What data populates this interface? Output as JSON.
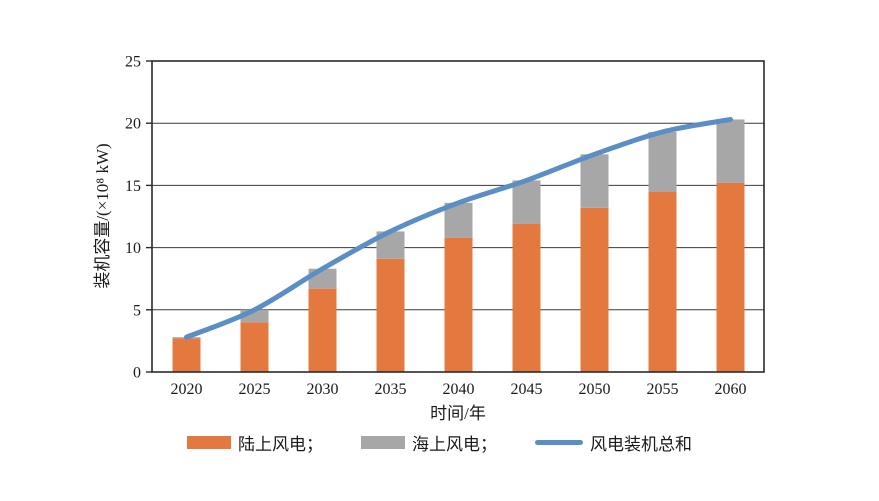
{
  "chart_data": {
    "type": "bar",
    "stacked": true,
    "orientation": "vertical",
    "categories": [
      "2020",
      "2025",
      "2030",
      "2035",
      "2040",
      "2045",
      "2050",
      "2055",
      "2060"
    ],
    "series": [
      {
        "name": "陆上风电",
        "color": "#E4793F",
        "values": [
          2.7,
          4.0,
          6.7,
          9.1,
          10.8,
          11.9,
          13.2,
          14.5,
          15.2
        ]
      },
      {
        "name": "海上风电",
        "color": "#A7A7A7",
        "values": [
          0.1,
          1.0,
          1.6,
          2.2,
          2.8,
          3.5,
          4.3,
          4.8,
          5.1
        ]
      }
    ],
    "line_series": {
      "name": "风电装机总和",
      "color": "#5B8EC4",
      "values": [
        2.8,
        5.0,
        8.3,
        11.3,
        13.6,
        15.4,
        17.5,
        19.3,
        20.3
      ]
    },
    "title": "",
    "xlabel": "时间/年",
    "ylabel": "装机容量/(×10⁸ kW)",
    "ylim": [
      0,
      25
    ],
    "ytick_step": 5,
    "yticks": [
      0,
      5,
      10,
      15,
      20,
      25
    ],
    "grid": true,
    "legend_position": "bottom",
    "legend": [
      "陆上风电；",
      "海上风电；",
      "风电装机总和"
    ],
    "axis_color": "#2b2b2b",
    "text_color": "#1a1a1a"
  }
}
